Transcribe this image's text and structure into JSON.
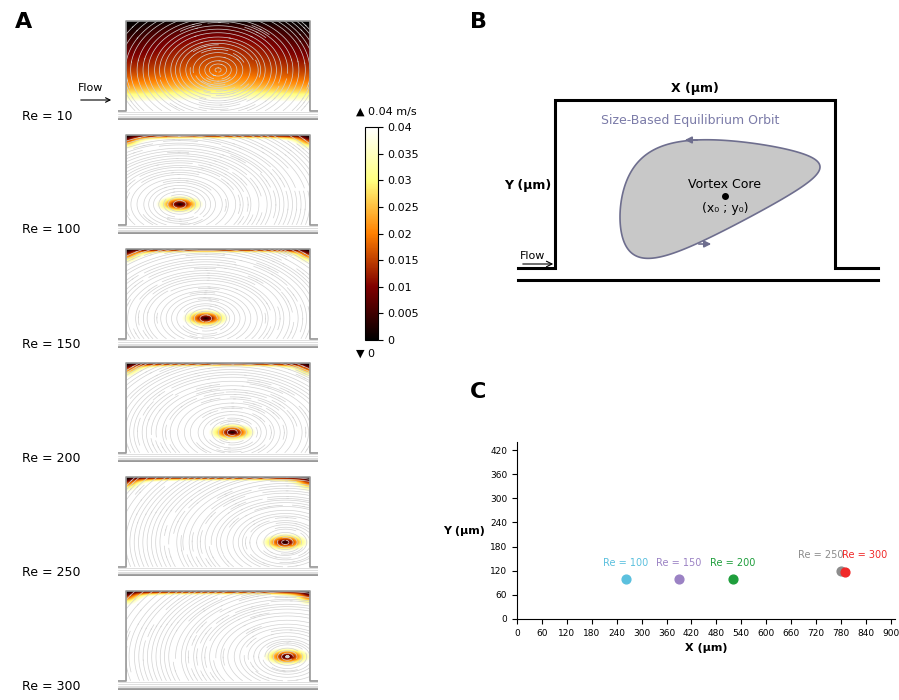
{
  "panel_labels": [
    "A",
    "B",
    "C"
  ],
  "panel_a": {
    "flow_label": "Flow",
    "panels": [
      "Re = 10",
      "Re = 100",
      "Re = 150",
      "Re = 200",
      "Re = 250",
      "Re = 300"
    ],
    "colorbar": {
      "range": [
        0,
        0.04
      ],
      "ticks": [
        0,
        0.005,
        0.01,
        0.015,
        0.02,
        0.025,
        0.03,
        0.035,
        0.04
      ],
      "top_label": "▲ 0.04 m/s",
      "bottom_label": "▼ 0"
    }
  },
  "panel_b": {
    "x_label": "X (μm)",
    "y_label": "Y (μm)",
    "orbit_label": "Size-Based Equilibrium Orbit",
    "core_label": "Vortex Core",
    "core_coords": "(x₀ ; y₀)",
    "flow_label": "Flow"
  },
  "chart_data": {
    "type": "scatter",
    "x_label": "X (μm)",
    "y_label": "Y (μm)",
    "xlim": [
      0,
      910
    ],
    "ylim": [
      0,
      440
    ],
    "xticks": [
      0,
      60,
      120,
      180,
      240,
      300,
      360,
      420,
      480,
      540,
      600,
      660,
      720,
      780,
      840,
      900
    ],
    "yticks": [
      0,
      60,
      120,
      180,
      240,
      300,
      360,
      420
    ],
    "series": [
      {
        "name": "Re = 100",
        "color": "#5bc0de",
        "x": [
          262
        ],
        "values": [
          100
        ]
      },
      {
        "name": "Re = 150",
        "color": "#9b82c4",
        "x": [
          390
        ],
        "values": [
          100
        ]
      },
      {
        "name": "Re = 200",
        "color": "#1e9e3c",
        "x": [
          520
        ],
        "values": [
          100
        ]
      },
      {
        "name": "Re = 250",
        "color": "#8c8c8c",
        "x": [
          780
        ],
        "values": [
          120
        ]
      },
      {
        "name": "Re = 300",
        "color": "#f02828",
        "x": [
          790
        ],
        "values": [
          118
        ]
      }
    ]
  }
}
